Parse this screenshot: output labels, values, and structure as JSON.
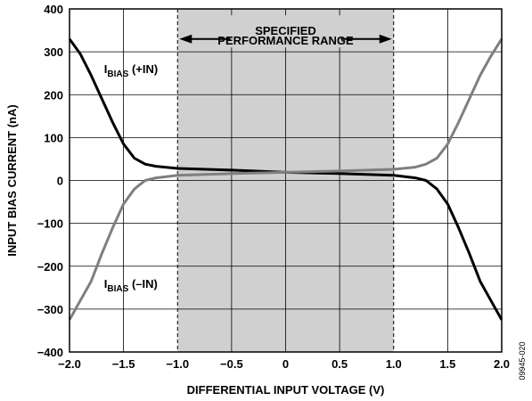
{
  "chart_data": {
    "type": "line",
    "xlabel": "DIFFERENTIAL INPUT VOLTAGE (V)",
    "ylabel": "INPUT BIAS CURRENT (nA)",
    "xlim": [
      -2.0,
      2.0
    ],
    "ylim": [
      -400,
      400
    ],
    "x_ticks": [
      -2.0,
      -1.5,
      -1.0,
      -0.5,
      0,
      0.5,
      1.0,
      1.5,
      2.0
    ],
    "x_tick_labels": [
      "−2.0",
      "−1.5",
      "−1.0",
      "−0.5",
      "0",
      "0.5",
      "1.0",
      "1.5",
      "2.0"
    ],
    "y_ticks": [
      -400,
      -300,
      -200,
      -100,
      0,
      100,
      200,
      300,
      400
    ],
    "y_tick_labels": [
      "−400",
      "−300",
      "−200",
      "−100",
      "0",
      "100",
      "200",
      "300",
      "400"
    ],
    "grid": true,
    "specified_range": {
      "x": [
        -1.0,
        1.0
      ],
      "label_line1": "SPECIFIED",
      "label_line2": "PERFORMANCE RANGE",
      "color": "#d0d0d0"
    },
    "series": [
      {
        "label_main": "I",
        "label_sub": "BIAS",
        "label_suffix": " (+IN)",
        "color": "#000000",
        "x": [
          -2.0,
          -1.9,
          -1.8,
          -1.7,
          -1.6,
          -1.5,
          -1.4,
          -1.3,
          -1.2,
          -1.0,
          -0.5,
          0,
          0.5,
          1.0,
          1.2,
          1.3,
          1.4,
          1.5,
          1.6,
          1.7,
          1.8,
          1.9,
          2.0
        ],
        "values": [
          330,
          295,
          245,
          190,
          135,
          85,
          52,
          38,
          33,
          28,
          24,
          19,
          16,
          12,
          6,
          0,
          -20,
          -55,
          -110,
          -170,
          -235,
          -280,
          -325
        ]
      },
      {
        "label_main": "I",
        "label_sub": "BIAS",
        "label_suffix": " (–IN)",
        "color": "#7f7f7f",
        "x": [
          -2.0,
          -1.9,
          -1.8,
          -1.7,
          -1.6,
          -1.5,
          -1.4,
          -1.3,
          -1.2,
          -1.0,
          -0.5,
          0,
          0.5,
          1.0,
          1.2,
          1.3,
          1.4,
          1.5,
          1.6,
          1.7,
          1.8,
          1.9,
          2.0
        ],
        "values": [
          -325,
          -280,
          -235,
          -170,
          -110,
          -55,
          -20,
          0,
          6,
          12,
          16,
          19,
          22,
          26,
          31,
          38,
          52,
          85,
          135,
          190,
          245,
          290,
          330
        ]
      }
    ],
    "figure_id": "09945-020"
  }
}
